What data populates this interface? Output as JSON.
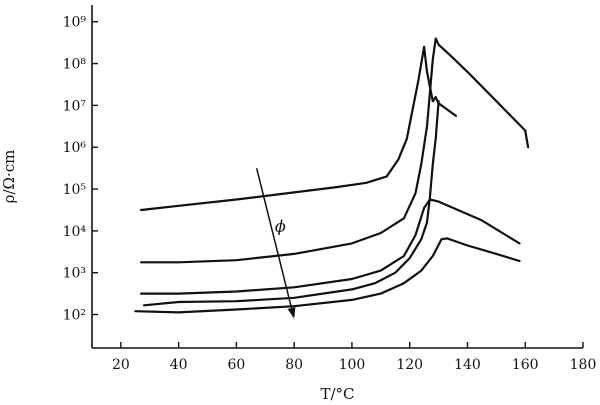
{
  "chart_data": {
    "type": "line",
    "xlabel": "T/°C",
    "ylabel": "ρ/Ω·cm",
    "xlim": [
      10,
      180
    ],
    "ylim": [
      1.2,
      9.4
    ],
    "y_scale": "log10",
    "x_ticks": [
      20,
      40,
      60,
      80,
      100,
      120,
      140,
      160,
      180
    ],
    "y_ticks": [
      2,
      3,
      4,
      5,
      6,
      7,
      8,
      9
    ],
    "y_tick_labels": [
      "10²",
      "10³",
      "10⁴",
      "10⁵",
      "10⁶",
      "10⁷",
      "10⁸",
      "10⁹"
    ],
    "grid": false,
    "legend": "none",
    "annotation": {
      "text": "ϕ",
      "arrow_from": [
        67,
        5.5
      ],
      "arrow_to": [
        80,
        1.9
      ]
    },
    "series": [
      {
        "x": [
          27,
          40,
          60,
          80,
          95,
          105,
          112,
          116,
          119,
          121,
          123,
          125,
          126,
          128,
          129,
          130,
          133,
          136
        ],
        "y": [
          4.5,
          4.6,
          4.75,
          4.92,
          5.05,
          5.15,
          5.3,
          5.7,
          6.2,
          6.9,
          7.6,
          8.4,
          7.8,
          7.1,
          7.2,
          7.05,
          6.9,
          6.75
        ]
      },
      {
        "x": [
          27,
          40,
          60,
          80,
          100,
          110,
          118,
          122,
          124,
          126,
          127,
          128,
          129,
          130,
          134,
          140,
          150,
          160,
          161
        ],
        "y": [
          3.25,
          3.25,
          3.3,
          3.45,
          3.7,
          3.95,
          4.3,
          4.9,
          5.6,
          6.5,
          7.3,
          8.1,
          8.6,
          8.45,
          8.2,
          7.8,
          7.1,
          6.4,
          6.0
        ]
      },
      {
        "x": [
          27,
          40,
          60,
          80,
          100,
          110,
          118,
          122,
          125,
          127,
          130,
          135,
          145,
          158
        ],
        "y": [
          2.5,
          2.5,
          2.55,
          2.65,
          2.85,
          3.05,
          3.4,
          3.9,
          4.55,
          4.75,
          4.7,
          4.55,
          4.25,
          3.7
        ]
      },
      {
        "x": [
          28,
          40,
          60,
          80,
          100,
          108,
          115,
          120,
          124,
          126,
          127,
          128,
          129,
          130
        ],
        "y": [
          2.22,
          2.3,
          2.32,
          2.4,
          2.6,
          2.75,
          3.0,
          3.35,
          3.8,
          4.2,
          4.8,
          5.6,
          6.2,
          7.1
        ]
      },
      {
        "x": [
          25,
          40,
          60,
          80,
          100,
          110,
          118,
          124,
          128,
          131,
          133,
          140,
          150,
          158
        ],
        "y": [
          2.08,
          2.05,
          2.12,
          2.2,
          2.35,
          2.5,
          2.75,
          3.05,
          3.4,
          3.8,
          3.82,
          3.65,
          3.45,
          3.28
        ]
      }
    ]
  }
}
